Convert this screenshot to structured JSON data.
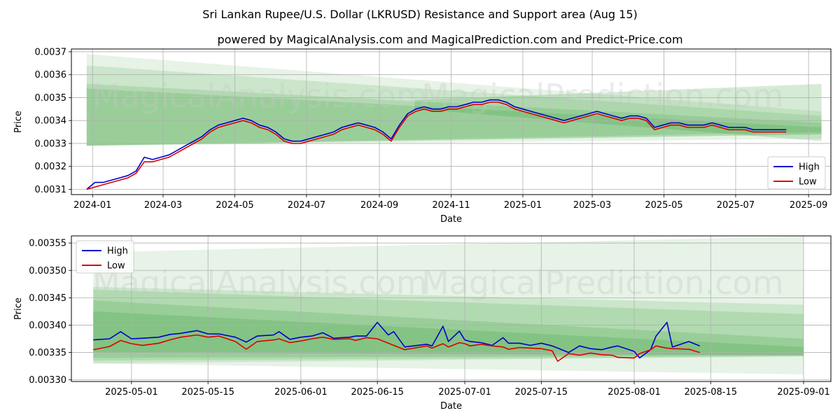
{
  "title": "Sri Lankan Rupee/U.S. Dollar (LKRUSD) Resistance and Support area (Aug 15)",
  "subtitle": "powered by MagicalAnalysis.com and MagicalPrediction.com and Predict-Price.com",
  "watermarks": [
    "MagicalAnalysis.com",
    "MagicalPrediction.com"
  ],
  "colors": {
    "high": "#0000cc",
    "low": "#dd0000",
    "band": "#2e9a2e",
    "grid": "#b0b0b0"
  },
  "chart_data": [
    {
      "type": "line",
      "xlabel": "Date",
      "ylabel": "Price",
      "xlim": [
        "2023-12-14",
        "2025-09-20"
      ],
      "ylim": [
        0.003077,
        0.003712
      ],
      "x_ticks": [
        "2024-01",
        "2024-03",
        "2024-05",
        "2024-07",
        "2024-09",
        "2024-11",
        "2025-01",
        "2025-03",
        "2025-05",
        "2025-07",
        "2025-09"
      ],
      "x_tick_dates": [
        "2024-01-01",
        "2024-03-01",
        "2024-05-01",
        "2024-07-01",
        "2024-09-01",
        "2024-11-01",
        "2025-01-01",
        "2025-03-01",
        "2025-05-01",
        "2025-07-01",
        "2025-09-01"
      ],
      "y_ticks": [
        "0.0031",
        "0.0032",
        "0.0033",
        "0.0034",
        "0.0035",
        "0.0036",
        "0.0037"
      ],
      "legend": {
        "position": "bottom-right",
        "entries": [
          "High",
          "Low"
        ]
      },
      "grid": true,
      "bands": [
        {
          "x": [
            "2023-12-27",
            "2025-09-12"
          ],
          "upper": [
            0.00369,
            0.00344
          ],
          "lower": [
            0.00329,
            0.00332
          ]
        },
        {
          "x": [
            "2023-12-27",
            "2025-09-12"
          ],
          "upper": [
            0.00364,
            0.00342
          ],
          "lower": [
            0.00329,
            0.00334
          ]
        },
        {
          "x": [
            "2023-12-27",
            "2025-09-12"
          ],
          "upper": [
            0.00356,
            0.00339
          ],
          "lower": [
            0.00329,
            0.00334
          ]
        },
        {
          "x": [
            "2023-12-27",
            "2025-09-12"
          ],
          "upper": [
            0.00354,
            0.00337
          ],
          "lower": [
            0.00329,
            0.00335
          ]
        },
        {
          "x": [
            "2024-10-01",
            "2025-09-12"
          ],
          "upper": [
            0.00349,
            0.00356
          ],
          "lower": [
            0.00345,
            0.00331
          ]
        }
      ],
      "series": [
        {
          "name": "High",
          "x": [
            "2023-12-27",
            "2024-01-03",
            "2024-01-10",
            "2024-01-17",
            "2024-01-24",
            "2024-01-31",
            "2024-02-07",
            "2024-02-14",
            "2024-02-21",
            "2024-02-28",
            "2024-03-06",
            "2024-03-13",
            "2024-03-20",
            "2024-03-27",
            "2024-04-03",
            "2024-04-10",
            "2024-04-17",
            "2024-04-24",
            "2024-05-01",
            "2024-05-08",
            "2024-05-15",
            "2024-05-22",
            "2024-05-29",
            "2024-06-05",
            "2024-06-12",
            "2024-06-19",
            "2024-06-26",
            "2024-07-03",
            "2024-07-10",
            "2024-07-17",
            "2024-07-24",
            "2024-07-31",
            "2024-08-07",
            "2024-08-14",
            "2024-08-21",
            "2024-08-28",
            "2024-09-04",
            "2024-09-11",
            "2024-09-18",
            "2024-09-25",
            "2024-10-02",
            "2024-10-09",
            "2024-10-16",
            "2024-10-23",
            "2024-10-30",
            "2024-11-06",
            "2024-11-13",
            "2024-11-20",
            "2024-11-27",
            "2024-12-04",
            "2024-12-11",
            "2024-12-18",
            "2024-12-25",
            "2025-01-01",
            "2025-01-08",
            "2025-01-15",
            "2025-01-22",
            "2025-01-29",
            "2025-02-05",
            "2025-02-12",
            "2025-02-19",
            "2025-02-26",
            "2025-03-05",
            "2025-03-12",
            "2025-03-19",
            "2025-03-26",
            "2025-04-02",
            "2025-04-09",
            "2025-04-16",
            "2025-04-23",
            "2025-04-30",
            "2025-05-07",
            "2025-05-14",
            "2025-05-21",
            "2025-05-28",
            "2025-06-04",
            "2025-06-11",
            "2025-06-18",
            "2025-06-25",
            "2025-07-02",
            "2025-07-09",
            "2025-07-16",
            "2025-07-23",
            "2025-07-30",
            "2025-08-06",
            "2025-08-13"
          ],
          "y": [
            0.0031,
            0.00313,
            0.00313,
            0.00314,
            0.00315,
            0.00316,
            0.00318,
            0.00324,
            0.00323,
            0.00324,
            0.00325,
            0.00327,
            0.00329,
            0.00331,
            0.00333,
            0.00336,
            0.00338,
            0.00339,
            0.0034,
            0.00341,
            0.0034,
            0.00338,
            0.00337,
            0.00335,
            0.00332,
            0.00331,
            0.00331,
            0.00332,
            0.00333,
            0.00334,
            0.00335,
            0.00337,
            0.00338,
            0.00339,
            0.00338,
            0.00337,
            0.00335,
            0.00332,
            0.00338,
            0.00343,
            0.00345,
            0.00346,
            0.00345,
            0.00345,
            0.00346,
            0.00346,
            0.00347,
            0.00348,
            0.00348,
            0.00349,
            0.00349,
            0.00348,
            0.00346,
            0.00345,
            0.00344,
            0.00343,
            0.00342,
            0.00341,
            0.0034,
            0.00341,
            0.00342,
            0.00343,
            0.00344,
            0.00343,
            0.00342,
            0.00341,
            0.00342,
            0.00342,
            0.00341,
            0.00337,
            0.00338,
            0.00339,
            0.00339,
            0.00338,
            0.00338,
            0.00338,
            0.00339,
            0.00338,
            0.00337,
            0.00337,
            0.00337,
            0.00336,
            0.00336,
            0.00336,
            0.00336,
            0.00336
          ]
        },
        {
          "name": "Low",
          "x": [
            "2023-12-27",
            "2024-01-03",
            "2024-01-10",
            "2024-01-17",
            "2024-01-24",
            "2024-01-31",
            "2024-02-07",
            "2024-02-14",
            "2024-02-21",
            "2024-02-28",
            "2024-03-06",
            "2024-03-13",
            "2024-03-20",
            "2024-03-27",
            "2024-04-03",
            "2024-04-10",
            "2024-04-17",
            "2024-04-24",
            "2024-05-01",
            "2024-05-08",
            "2024-05-15",
            "2024-05-22",
            "2024-05-29",
            "2024-06-05",
            "2024-06-12",
            "2024-06-19",
            "2024-06-26",
            "2024-07-03",
            "2024-07-10",
            "2024-07-17",
            "2024-07-24",
            "2024-07-31",
            "2024-08-07",
            "2024-08-14",
            "2024-08-21",
            "2024-08-28",
            "2024-09-04",
            "2024-09-11",
            "2024-09-18",
            "2024-09-25",
            "2024-10-02",
            "2024-10-09",
            "2024-10-16",
            "2024-10-23",
            "2024-10-30",
            "2024-11-06",
            "2024-11-13",
            "2024-11-20",
            "2024-11-27",
            "2024-12-04",
            "2024-12-11",
            "2024-12-18",
            "2024-12-25",
            "2025-01-01",
            "2025-01-08",
            "2025-01-15",
            "2025-01-22",
            "2025-01-29",
            "2025-02-05",
            "2025-02-12",
            "2025-02-19",
            "2025-02-26",
            "2025-03-05",
            "2025-03-12",
            "2025-03-19",
            "2025-03-26",
            "2025-04-02",
            "2025-04-09",
            "2025-04-16",
            "2025-04-23",
            "2025-04-30",
            "2025-05-07",
            "2025-05-14",
            "2025-05-21",
            "2025-05-28",
            "2025-06-04",
            "2025-06-11",
            "2025-06-18",
            "2025-06-25",
            "2025-07-02",
            "2025-07-09",
            "2025-07-16",
            "2025-07-23",
            "2025-07-30",
            "2025-08-06",
            "2025-08-13"
          ],
          "y": [
            0.0031,
            0.00311,
            0.00312,
            0.00313,
            0.00314,
            0.00315,
            0.00317,
            0.00322,
            0.00322,
            0.00323,
            0.00324,
            0.00326,
            0.00328,
            0.0033,
            0.00332,
            0.00335,
            0.00337,
            0.00338,
            0.00339,
            0.0034,
            0.00339,
            0.00337,
            0.00336,
            0.00334,
            0.00331,
            0.0033,
            0.0033,
            0.00331,
            0.00332,
            0.00333,
            0.00334,
            0.00336,
            0.00337,
            0.00338,
            0.00337,
            0.00336,
            0.00334,
            0.00331,
            0.00337,
            0.00342,
            0.00344,
            0.00345,
            0.00344,
            0.00344,
            0.00345,
            0.00345,
            0.00346,
            0.00347,
            0.00347,
            0.00348,
            0.00348,
            0.00347,
            0.00345,
            0.00344,
            0.00343,
            0.00342,
            0.00341,
            0.0034,
            0.00339,
            0.0034,
            0.00341,
            0.00342,
            0.00343,
            0.00342,
            0.00341,
            0.0034,
            0.00341,
            0.00341,
            0.0034,
            0.00336,
            0.00337,
            0.00338,
            0.00338,
            0.00337,
            0.00337,
            0.00337,
            0.00338,
            0.00337,
            0.00336,
            0.00336,
            0.00336,
            0.00335,
            0.00335,
            0.00335,
            0.00335,
            0.00335
          ]
        }
      ]
    },
    {
      "type": "line",
      "xlabel": "Date",
      "ylabel": "Price",
      "xlim": [
        "2025-04-20",
        "2025-09-06"
      ],
      "ylim": [
        0.003297,
        0.003563
      ],
      "x_ticks": [
        "2025-05-01",
        "2025-05-15",
        "2025-06-01",
        "2025-06-15",
        "2025-07-01",
        "2025-07-15",
        "2025-08-01",
        "2025-08-15",
        "2025-09-01"
      ],
      "y_ticks": [
        "0.00330",
        "0.00335",
        "0.00340",
        "0.00345",
        "0.00350",
        "0.00355"
      ],
      "legend": {
        "position": "top-left",
        "entries": [
          "High",
          "Low"
        ]
      },
      "grid": true,
      "bands": [
        {
          "x": [
            "2025-04-24",
            "2025-09-01"
          ],
          "upper": [
            0.003533,
            0.003562
          ],
          "lower": [
            0.00333,
            0.00331
          ]
        },
        {
          "x": [
            "2025-04-24",
            "2025-09-01"
          ],
          "upper": [
            0.00347,
            0.003437
          ],
          "lower": [
            0.00333,
            0.003343
          ]
        },
        {
          "x": [
            "2025-04-24",
            "2025-09-01"
          ],
          "upper": [
            0.003465,
            0.00342
          ],
          "lower": [
            0.003335,
            0.003343
          ]
        },
        {
          "x": [
            "2025-04-24",
            "2025-09-01"
          ],
          "upper": [
            0.003445,
            0.003375
          ],
          "lower": [
            0.00334,
            0.003345
          ]
        },
        {
          "x": [
            "2025-04-24",
            "2025-09-01"
          ],
          "upper": [
            0.003425,
            0.00336
          ],
          "lower": [
            0.00335,
            0.003345
          ]
        }
      ],
      "series": [
        {
          "name": "High",
          "x": [
            "2025-04-24",
            "2025-04-27",
            "2025-04-29",
            "2025-05-01",
            "2025-05-03",
            "2025-05-06",
            "2025-05-08",
            "2025-05-10",
            "2025-05-13",
            "2025-05-15",
            "2025-05-17",
            "2025-05-20",
            "2025-05-22",
            "2025-05-24",
            "2025-05-27",
            "2025-05-28",
            "2025-05-30",
            "2025-06-01",
            "2025-06-03",
            "2025-06-05",
            "2025-06-07",
            "2025-06-10",
            "2025-06-11",
            "2025-06-13",
            "2025-06-15",
            "2025-06-17",
            "2025-06-18",
            "2025-06-20",
            "2025-06-24",
            "2025-06-25",
            "2025-06-27",
            "2025-06-28",
            "2025-06-30",
            "2025-07-01",
            "2025-07-02",
            "2025-07-04",
            "2025-07-06",
            "2025-07-08",
            "2025-07-09",
            "2025-07-11",
            "2025-07-13",
            "2025-07-15",
            "2025-07-17",
            "2025-07-18",
            "2025-07-20",
            "2025-07-22",
            "2025-07-24",
            "2025-07-26",
            "2025-07-28",
            "2025-07-29",
            "2025-08-01",
            "2025-08-02",
            "2025-08-04",
            "2025-08-05",
            "2025-08-07",
            "2025-08-08",
            "2025-08-11",
            "2025-08-13"
          ],
          "y": [
            0.003373,
            0.003375,
            0.003388,
            0.003375,
            0.003376,
            0.003378,
            0.003383,
            0.003385,
            0.00339,
            0.003384,
            0.003384,
            0.003378,
            0.003369,
            0.00338,
            0.003382,
            0.003388,
            0.003374,
            0.003378,
            0.00338,
            0.003386,
            0.003376,
            0.003378,
            0.00338,
            0.00338,
            0.003405,
            0.003382,
            0.003388,
            0.00336,
            0.003365,
            0.003362,
            0.003398,
            0.00337,
            0.003389,
            0.003373,
            0.00337,
            0.003368,
            0.003363,
            0.003377,
            0.003367,
            0.003367,
            0.003363,
            0.003367,
            0.003362,
            0.003358,
            0.00335,
            0.003362,
            0.003357,
            0.003355,
            0.00336,
            0.003362,
            0.003352,
            0.00334,
            0.003355,
            0.00338,
            0.003405,
            0.00336,
            0.00337,
            0.003362
          ]
        },
        {
          "name": "Low",
          "x": [
            "2025-04-24",
            "2025-04-27",
            "2025-04-29",
            "2025-05-01",
            "2025-05-03",
            "2025-05-06",
            "2025-05-08",
            "2025-05-10",
            "2025-05-13",
            "2025-05-15",
            "2025-05-17",
            "2025-05-20",
            "2025-05-22",
            "2025-05-24",
            "2025-05-27",
            "2025-05-28",
            "2025-05-30",
            "2025-06-01",
            "2025-06-03",
            "2025-06-05",
            "2025-06-07",
            "2025-06-10",
            "2025-06-11",
            "2025-06-13",
            "2025-06-15",
            "2025-06-17",
            "2025-06-18",
            "2025-06-20",
            "2025-06-24",
            "2025-06-25",
            "2025-06-27",
            "2025-06-28",
            "2025-06-30",
            "2025-07-01",
            "2025-07-02",
            "2025-07-04",
            "2025-07-06",
            "2025-07-08",
            "2025-07-09",
            "2025-07-11",
            "2025-07-13",
            "2025-07-15",
            "2025-07-17",
            "2025-07-18",
            "2025-07-20",
            "2025-07-22",
            "2025-07-24",
            "2025-07-26",
            "2025-07-28",
            "2025-07-29",
            "2025-08-01",
            "2025-08-02",
            "2025-08-04",
            "2025-08-05",
            "2025-08-07",
            "2025-08-08",
            "2025-08-11",
            "2025-08-13"
          ],
          "y": [
            0.003355,
            0.003361,
            0.003372,
            0.003366,
            0.003363,
            0.003367,
            0.003373,
            0.003378,
            0.003382,
            0.003378,
            0.00338,
            0.00337,
            0.003356,
            0.00337,
            0.003373,
            0.003375,
            0.003368,
            0.003371,
            0.003375,
            0.003378,
            0.003374,
            0.003375,
            0.003372,
            0.003377,
            0.003375,
            0.003367,
            0.003363,
            0.003355,
            0.003362,
            0.003358,
            0.003366,
            0.00336,
            0.003368,
            0.003366,
            0.003362,
            0.003365,
            0.003362,
            0.00336,
            0.003356,
            0.003359,
            0.003358,
            0.003357,
            0.003353,
            0.003334,
            0.003348,
            0.003345,
            0.003349,
            0.003346,
            0.003345,
            0.003341,
            0.00334,
            0.003348,
            0.003355,
            0.003362,
            0.003358,
            0.003357,
            0.003356,
            0.00335
          ]
        }
      ]
    }
  ]
}
